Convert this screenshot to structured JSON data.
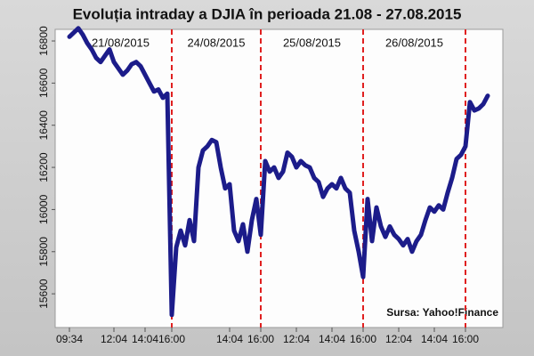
{
  "chart_data": {
    "type": "line",
    "title": "Evoluția intraday a DJIA în perioada 21.08 - 27.08.2015",
    "source": "Sursa: Yahoo!Finance",
    "day_labels": [
      "21/08/2015",
      "24/08/2015",
      "25/08/2015",
      "26/08/2015"
    ],
    "color": "#1c1c8a",
    "categories": [
      "09:34",
      null,
      null,
      null,
      null,
      null,
      null,
      null,
      null,
      null,
      "12:04",
      null,
      null,
      null,
      null,
      null,
      null,
      "14:04",
      null,
      null,
      null,
      null,
      null,
      "16:00",
      null,
      null,
      null,
      null,
      null,
      null,
      null,
      null,
      null,
      null,
      null,
      null,
      "14:04",
      null,
      null,
      null,
      null,
      null,
      null,
      "16:00",
      null,
      null,
      null,
      null,
      null,
      null,
      null,
      "12:04",
      null,
      null,
      null,
      null,
      null,
      null,
      null,
      "14:04",
      null,
      null,
      null,
      null,
      null,
      null,
      "16:00",
      null,
      null,
      null,
      null,
      null,
      null,
      null,
      "12:04",
      null,
      null,
      null,
      null,
      null,
      null,
      null,
      "14:04",
      null,
      null,
      null,
      null,
      null,
      null,
      "16:00",
      null,
      null,
      null,
      null,
      null
    ],
    "values": [
      16820,
      16840,
      16860,
      16830,
      16790,
      16760,
      16720,
      16700,
      16730,
      16760,
      16700,
      16670,
      16640,
      16660,
      16690,
      16700,
      16680,
      16640,
      16600,
      16560,
      16570,
      16530,
      16550,
      15500,
      15820,
      15900,
      15830,
      15950,
      15850,
      16200,
      16280,
      16300,
      16330,
      16320,
      16200,
      16100,
      16120,
      15900,
      15850,
      15930,
      15800,
      15950,
      16050,
      15880,
      16230,
      16180,
      16200,
      16150,
      16180,
      16270,
      16250,
      16200,
      16230,
      16210,
      16200,
      16150,
      16130,
      16060,
      16100,
      16120,
      16100,
      16150,
      16100,
      16080,
      15900,
      15800,
      15680,
      16050,
      15850,
      16010,
      15920,
      15870,
      15920,
      15880,
      15860,
      15830,
      15860,
      15800,
      15850,
      15880,
      15950,
      16010,
      15990,
      16020,
      16000,
      16080,
      16150,
      16240,
      16260,
      16300,
      16510,
      16470,
      16480,
      16500,
      16540
    ],
    "ylim": [
      15440,
      16855
    ],
    "yticks": [
      15600,
      15800,
      16000,
      16200,
      16400,
      16600,
      16800
    ]
  }
}
